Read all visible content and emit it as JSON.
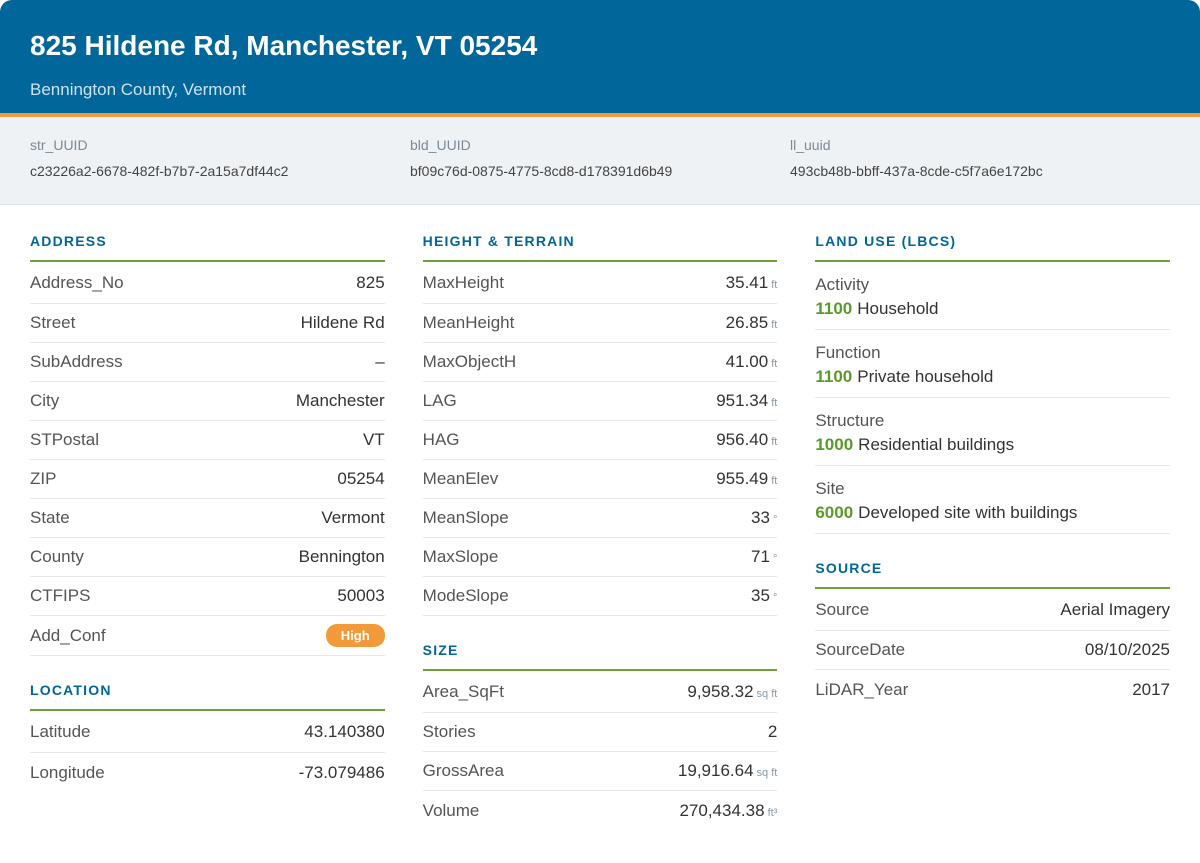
{
  "header": {
    "title": "825 Hildene Rd, Manchester, VT 05254",
    "subtitle": "Bennington County, Vermont"
  },
  "ids": [
    {
      "label": "str_UUID",
      "value": "c23226a2-6678-482f-b7b7-2a15a7df44c2"
    },
    {
      "label": "bld_UUID",
      "value": "bf09c76d-0875-4775-8cd8-d178391d6b49"
    },
    {
      "label": "ll_uuid",
      "value": "493cb48b-bbff-437a-8cde-c5f7a6e172bc"
    }
  ],
  "address": {
    "title": "ADDRESS",
    "rows": [
      {
        "label": "Address_No",
        "value": "825"
      },
      {
        "label": "Street",
        "value": "Hildene Rd"
      },
      {
        "label": "SubAddress",
        "value": "–"
      },
      {
        "label": "City",
        "value": "Manchester"
      },
      {
        "label": "STPostal",
        "value": "VT"
      },
      {
        "label": "ZIP",
        "value": "05254"
      },
      {
        "label": "State",
        "value": "Vermont"
      },
      {
        "label": "County",
        "value": "Bennington"
      },
      {
        "label": "CTFIPS",
        "value": "50003"
      }
    ],
    "conf_label": "Add_Conf",
    "conf_badge": "High"
  },
  "location": {
    "title": "LOCATION",
    "rows": [
      {
        "label": "Latitude",
        "value": "43.140380"
      },
      {
        "label": "Longitude",
        "value": "-73.079486"
      }
    ]
  },
  "height": {
    "title": "HEIGHT & TERRAIN",
    "rows": [
      {
        "label": "MaxHeight",
        "value": "35.41",
        "unit": "ft"
      },
      {
        "label": "MeanHeight",
        "value": "26.85",
        "unit": "ft"
      },
      {
        "label": "MaxObjectH",
        "value": "41.00",
        "unit": "ft"
      },
      {
        "label": "LAG",
        "value": "951.34",
        "unit": "ft"
      },
      {
        "label": "HAG",
        "value": "956.40",
        "unit": "ft"
      },
      {
        "label": "MeanElev",
        "value": "955.49",
        "unit": "ft"
      },
      {
        "label": "MeanSlope",
        "value": "33",
        "unit": "°"
      },
      {
        "label": "MaxSlope",
        "value": "71",
        "unit": "°"
      },
      {
        "label": "ModeSlope",
        "value": "35",
        "unit": "°"
      }
    ]
  },
  "size": {
    "title": "SIZE",
    "rows": [
      {
        "label": "Area_SqFt",
        "value": "9,958.32",
        "unit": "sq ft"
      },
      {
        "label": "Stories",
        "value": "2",
        "unit": ""
      },
      {
        "label": "GrossArea",
        "value": "19,916.64",
        "unit": "sq ft"
      },
      {
        "label": "Volume",
        "value": "270,434.38",
        "unit": "ft³"
      }
    ]
  },
  "landuse": {
    "title": "LAND USE (LBCS)",
    "items": [
      {
        "label": "Activity",
        "code": "1100",
        "desc": "Household"
      },
      {
        "label": "Function",
        "code": "1100",
        "desc": "Private household"
      },
      {
        "label": "Structure",
        "code": "1000",
        "desc": "Residential buildings"
      },
      {
        "label": "Site",
        "code": "6000",
        "desc": "Developed site with buildings"
      }
    ]
  },
  "source": {
    "title": "SOURCE",
    "rows": [
      {
        "label": "Source",
        "value": "Aerial Imagery"
      },
      {
        "label": "SourceDate",
        "value": "08/10/2025"
      },
      {
        "label": "LiDAR_Year",
        "value": "2017"
      }
    ]
  },
  "colors": {
    "header_bg": "#016699",
    "accent_orange": "#f29a3a",
    "accent_green": "#6fa03a",
    "code_green": "#5a9a2a"
  }
}
